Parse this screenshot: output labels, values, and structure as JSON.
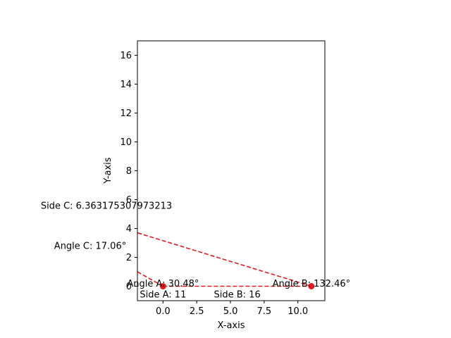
{
  "chart_data": {
    "type": "line",
    "title": "",
    "xlabel": "X-axis",
    "ylabel": "Y-axis",
    "xlim": [
      -1.9,
      12.0
    ],
    "ylim": [
      -1.0,
      17.0
    ],
    "xticks": [
      0.0,
      2.5,
      5.0,
      7.5,
      10.0
    ],
    "xtick_labels": [
      "0.0",
      "2.5",
      "5.0",
      "7.5",
      "10.0"
    ],
    "yticks": [
      0,
      2,
      4,
      6,
      8,
      10,
      12,
      14,
      16
    ],
    "ytick_labels": [
      "0",
      "2",
      "4",
      "6",
      "8",
      "10",
      "12",
      "14",
      "16"
    ],
    "grid": false,
    "line_color": "#e41a1c",
    "series": [
      {
        "style": "dashed",
        "x": [
          0,
          11
        ],
        "y": [
          0,
          0
        ]
      },
      {
        "style": "dashed",
        "x": [
          11,
          -1.9
        ],
        "y": [
          0,
          3.7
        ]
      },
      {
        "style": "dashed",
        "x": [
          -1.9,
          0
        ],
        "y": [
          1.0,
          0
        ]
      }
    ],
    "points": [
      {
        "x": 0,
        "y": 0
      },
      {
        "x": 11,
        "y": 0
      }
    ],
    "annotations": [
      {
        "text": "Angle A: 30.48°",
        "x": 0,
        "y": 0,
        "anchor": "middle"
      },
      {
        "text": "Angle B: 132.46°",
        "x": 11,
        "y": 0,
        "anchor": "middle"
      },
      {
        "text": "Angle C: 17.06°",
        "x": -5.4,
        "y": 2.6,
        "anchor": "middle"
      },
      {
        "text": "Side A: 11",
        "x": 0,
        "y": -0.75,
        "anchor": "middle"
      },
      {
        "text": "Side B: 16",
        "x": 5.5,
        "y": -0.75,
        "anchor": "middle"
      },
      {
        "text": "Side C: 6.363175307973213",
        "x": -4.2,
        "y": 5.4,
        "anchor": "middle"
      }
    ]
  }
}
